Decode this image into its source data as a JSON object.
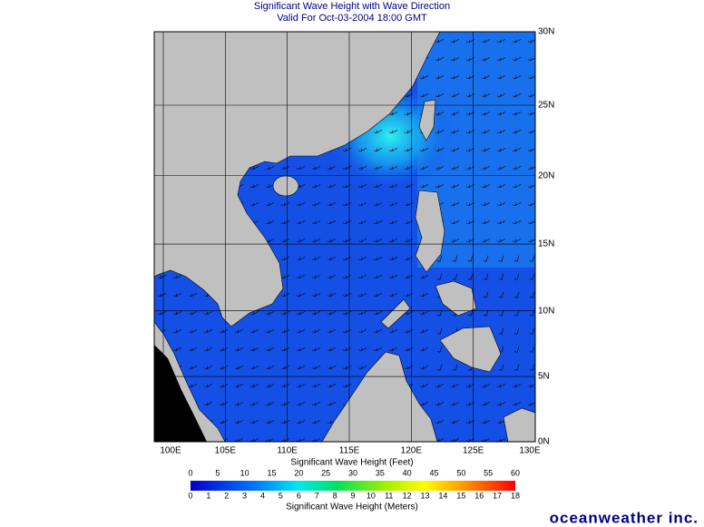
{
  "header": {
    "title": "Significant Wave Height with Wave Direction",
    "subtitle": "Valid For Oct-03-2004 18:00 GMT"
  },
  "map": {
    "lon_ticks": [
      {
        "value": 100,
        "label": "100E"
      },
      {
        "value": 105,
        "label": "105E"
      },
      {
        "value": 110,
        "label": "110E"
      },
      {
        "value": 115,
        "label": "115E"
      },
      {
        "value": 120,
        "label": "120E"
      },
      {
        "value": 125,
        "label": "125E"
      },
      {
        "value": 130,
        "label": "130E"
      }
    ],
    "lat_ticks": [
      {
        "value": 30,
        "label": "30N"
      },
      {
        "value": 25,
        "label": "25N"
      },
      {
        "value": 20,
        "label": "20N"
      },
      {
        "value": 15,
        "label": "15N"
      },
      {
        "value": 10,
        "label": "10N"
      },
      {
        "value": 5,
        "label": "5N"
      },
      {
        "value": 0,
        "label": "0N"
      }
    ]
  },
  "colorbar": {
    "feet_label": "Significant Wave Height (Feet)",
    "feet_ticks": [
      0,
      5,
      10,
      15,
      20,
      25,
      30,
      35,
      40,
      45,
      50,
      55,
      60
    ],
    "meters_label": "Significant Wave Height (Meters)",
    "meters_ticks": [
      0,
      1,
      2,
      3,
      4,
      5,
      6,
      7,
      8,
      9,
      10,
      11,
      12,
      13,
      14,
      15,
      16,
      17,
      18
    ]
  },
  "brand": "oceanweather inc."
}
